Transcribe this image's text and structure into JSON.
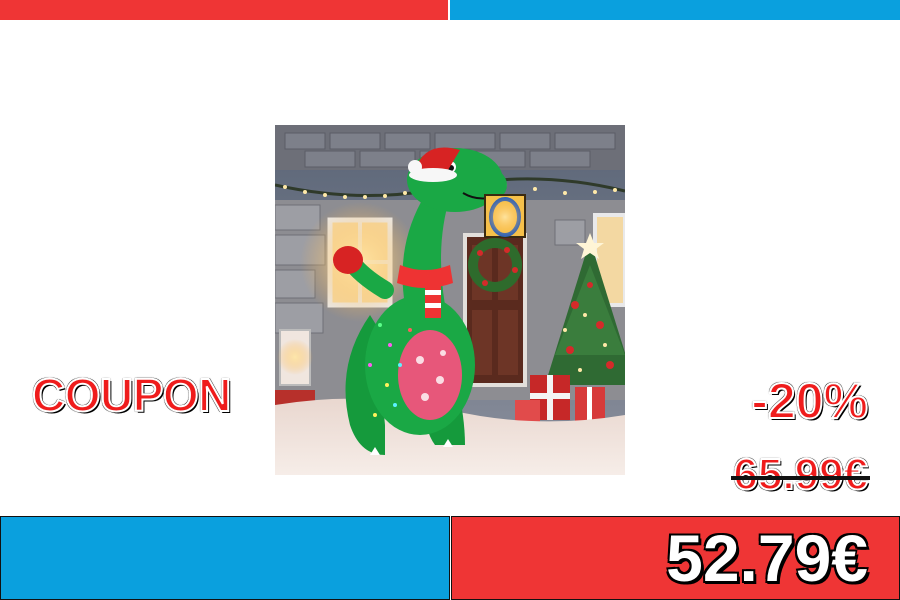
{
  "colors": {
    "red": "#ef3535",
    "blue": "#0aa0de",
    "price_red": "#ef1c1c",
    "white": "#ffffff"
  },
  "banner": {
    "coupon": "COUPON",
    "discount": "-20%",
    "old_price": "65.99€",
    "new_price": "52.79€"
  },
  "product": {
    "image_subject": "inflatable-dinosaur-christmas-decoration"
  }
}
